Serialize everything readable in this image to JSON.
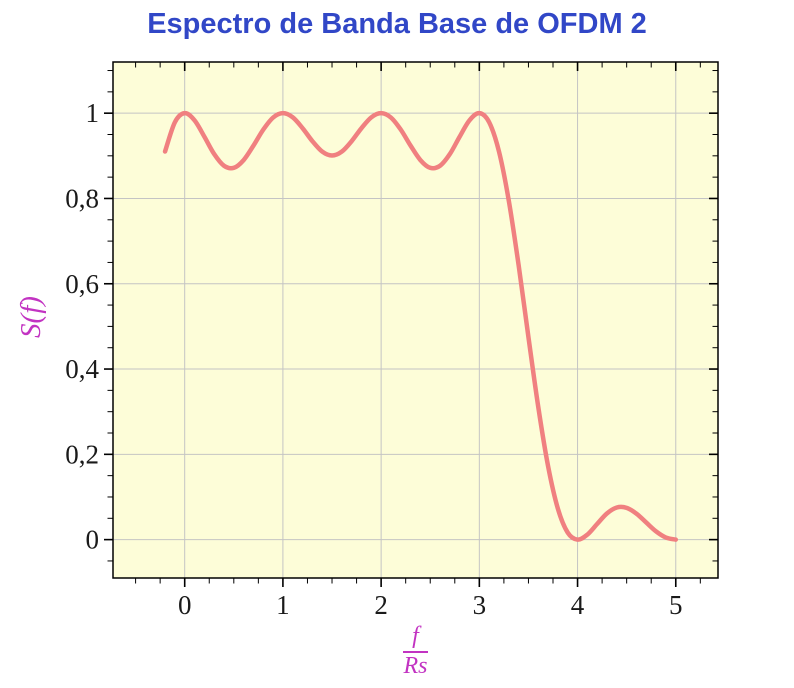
{
  "title": "Espectro de Banda Base de OFDM 2",
  "colors": {
    "title": "#3147C7",
    "axis_label": "#C233C2",
    "line": "#F08080",
    "plot_background": "#FDFDD8",
    "grid": "#C4C4C4",
    "tick_text": "#1A1A1A",
    "frame": "#000000"
  },
  "chart_data": {
    "type": "line",
    "title": "Espectro de Banda Base de OFDM 2",
    "ylabel": "S(f)",
    "xlabel_numerator": "f",
    "xlabel_denominator": "Rs",
    "xlim": [
      -0.73,
      5.43
    ],
    "ylim": [
      -0.09,
      1.12
    ],
    "xticks": [
      0,
      1,
      2,
      3,
      4,
      5
    ],
    "xtick_labels": [
      "0",
      "1",
      "2",
      "3",
      "4",
      "5"
    ],
    "yticks": [
      0,
      0.2,
      0.4,
      0.6,
      0.8,
      1
    ],
    "ytick_labels": [
      "0",
      "0,2",
      "0,4",
      "0,6",
      "0,8",
      "1"
    ],
    "minor_x_step": 0.25,
    "minor_y_step": 0.05,
    "grid": true,
    "legend": "none",
    "x": [
      -0.2,
      -0.1,
      0,
      0.1,
      0.2,
      0.3,
      0.4,
      0.5,
      0.6,
      0.7,
      0.8,
      0.9,
      1,
      1.1,
      1.2,
      1.3,
      1.4,
      1.5,
      1.6,
      1.7,
      1.8,
      1.9,
      2,
      2.1,
      2.2,
      2.3,
      2.4,
      2.5,
      2.6,
      2.7,
      2.8,
      2.9,
      3,
      3.1,
      3.2,
      3.3,
      3.4,
      3.5,
      3.6,
      3.7,
      3.8,
      3.9,
      4,
      4.1,
      4.2,
      4.3,
      4.4,
      4.5,
      4.6,
      4.7,
      4.8,
      4.9,
      5
    ],
    "y": [
      0.9101,
      0.9787,
      1,
      0.9833,
      0.9451,
      0.9042,
      0.8767,
      0.8718,
      0.89,
      0.9239,
      0.9614,
      0.9897,
      1,
      0.9902,
      0.9649,
      0.9344,
      0.9099,
      0.9006,
      0.9099,
      0.9344,
      0.9649,
      0.9902,
      1,
      0.9897,
      0.9614,
      0.9239,
      0.89,
      0.8718,
      0.8767,
      0.9042,
      0.9451,
      0.9833,
      1,
      0.9787,
      0.9101,
      0.7947,
      0.6434,
      0.4748,
      0.311,
      0.1722,
      0.0724,
      0.0164,
      0,
      0.0118,
      0.0369,
      0.0615,
      0.0753,
      0.0745,
      0.0608,
      0.0399,
      0.0192,
      0.0049,
      0
    ]
  }
}
